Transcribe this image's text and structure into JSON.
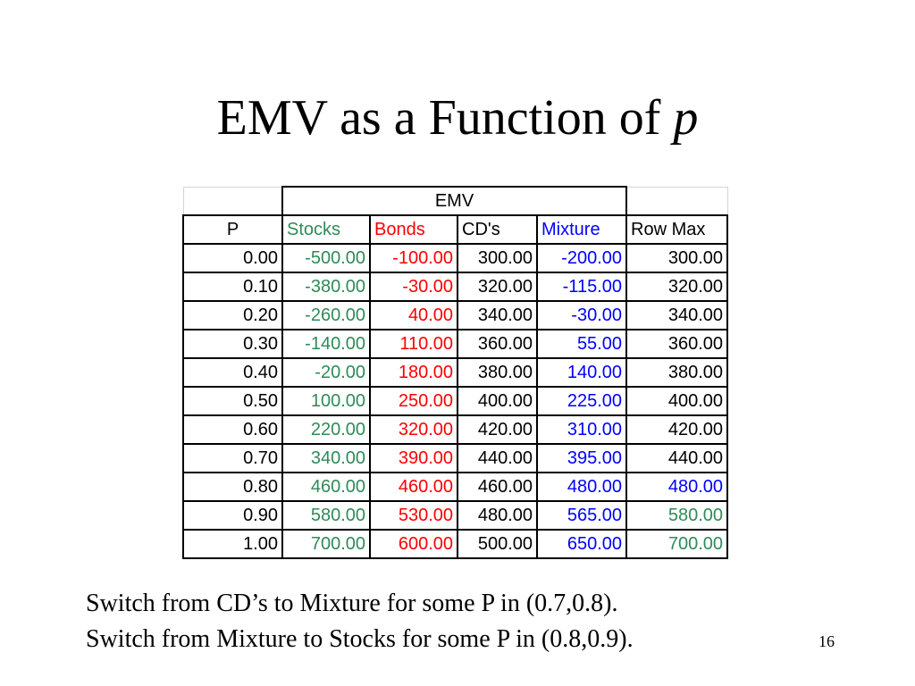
{
  "title": {
    "text": "EMV as a Function of ",
    "italic": "p"
  },
  "table": {
    "group_header": "EMV",
    "columns": [
      {
        "label": "P",
        "color": "#000000"
      },
      {
        "label": "Stocks",
        "color": "#2e8b57"
      },
      {
        "label": "Bonds",
        "color": "#ff0000"
      },
      {
        "label": "CD's",
        "color": "#000000"
      },
      {
        "label": "Mixture",
        "color": "#0000ff"
      },
      {
        "label": "Row Max",
        "color": "#000000"
      }
    ],
    "rows": [
      {
        "p": "0.00",
        "stocks": "-500.00",
        "bonds": "-100.00",
        "cds": "300.00",
        "mixture": "-200.00",
        "rowmax": "300.00",
        "rowmax_color": "black"
      },
      {
        "p": "0.10",
        "stocks": "-380.00",
        "bonds": "-30.00",
        "cds": "320.00",
        "mixture": "-115.00",
        "rowmax": "320.00",
        "rowmax_color": "black"
      },
      {
        "p": "0.20",
        "stocks": "-260.00",
        "bonds": "40.00",
        "cds": "340.00",
        "mixture": "-30.00",
        "rowmax": "340.00",
        "rowmax_color": "black"
      },
      {
        "p": "0.30",
        "stocks": "-140.00",
        "bonds": "110.00",
        "cds": "360.00",
        "mixture": "55.00",
        "rowmax": "360.00",
        "rowmax_color": "black"
      },
      {
        "p": "0.40",
        "stocks": "-20.00",
        "bonds": "180.00",
        "cds": "380.00",
        "mixture": "140.00",
        "rowmax": "380.00",
        "rowmax_color": "black"
      },
      {
        "p": "0.50",
        "stocks": "100.00",
        "bonds": "250.00",
        "cds": "400.00",
        "mixture": "225.00",
        "rowmax": "400.00",
        "rowmax_color": "black"
      },
      {
        "p": "0.60",
        "stocks": "220.00",
        "bonds": "320.00",
        "cds": "420.00",
        "mixture": "310.00",
        "rowmax": "420.00",
        "rowmax_color": "black"
      },
      {
        "p": "0.70",
        "stocks": "340.00",
        "bonds": "390.00",
        "cds": "440.00",
        "mixture": "395.00",
        "rowmax": "440.00",
        "rowmax_color": "black"
      },
      {
        "p": "0.80",
        "stocks": "460.00",
        "bonds": "460.00",
        "cds": "460.00",
        "mixture": "480.00",
        "rowmax": "480.00",
        "rowmax_color": "blue"
      },
      {
        "p": "0.90",
        "stocks": "580.00",
        "bonds": "530.00",
        "cds": "480.00",
        "mixture": "565.00",
        "rowmax": "580.00",
        "rowmax_color": "green"
      },
      {
        "p": "1.00",
        "stocks": "700.00",
        "bonds": "600.00",
        "cds": "500.00",
        "mixture": "650.00",
        "rowmax": "700.00",
        "rowmax_color": "green"
      }
    ]
  },
  "notes": [
    "Switch from CD’s to Mixture for some P in (0.7,0.8).",
    "Switch from Mixture to Stocks for some P in (0.8,0.9)."
  ],
  "page_number": "16"
}
